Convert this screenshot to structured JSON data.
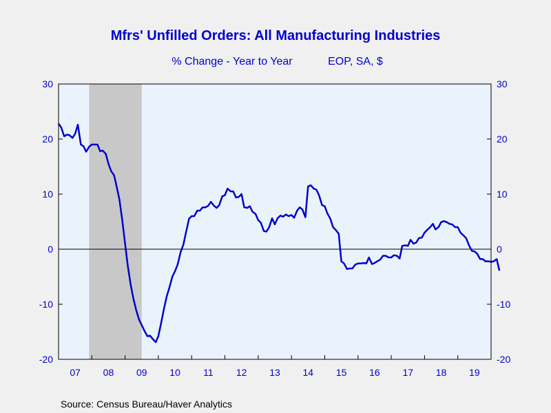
{
  "colors": {
    "background": "#f0f0f0",
    "plot_background": "#eaf2fb",
    "title": "#0000cc",
    "axis_text": "#0000cc",
    "series": "#0000cc",
    "recession": "#c8c8c8",
    "source_text": "#000000"
  },
  "chart_data": {
    "type": "line",
    "title": "Mfrs' Unfilled Orders: All Manufacturing Industries",
    "subtitle": "% Change - Year to Year",
    "subtitle_note": "EOP, SA, $",
    "source": "Source:  Census Bureau/Haver Analytics",
    "ylim": [
      -20,
      30
    ],
    "y_ticks_left": [
      "30",
      "20",
      "10",
      "0",
      "-10",
      "-20"
    ],
    "y_ticks_right": [
      "30",
      "20",
      "10",
      "0",
      "-10",
      "-20"
    ],
    "y_tick_values": [
      30,
      20,
      10,
      0,
      -10,
      -20
    ],
    "xlim": [
      2007.0,
      2020.0
    ],
    "x_ticks": [
      "07",
      "08",
      "09",
      "10",
      "11",
      "12",
      "13",
      "14",
      "15",
      "16",
      "17",
      "18",
      "19"
    ],
    "zero_line": true,
    "recession_shading": {
      "start": 2007.92,
      "end": 2009.5
    },
    "series": [
      {
        "values": [
          [
            2007.0,
            22.8
          ],
          [
            2007.08,
            22.1
          ],
          [
            2007.17,
            20.5
          ],
          [
            2007.25,
            20.8
          ],
          [
            2007.33,
            20.7
          ],
          [
            2007.42,
            20.2
          ],
          [
            2007.5,
            21.0
          ],
          [
            2007.58,
            22.6
          ],
          [
            2007.67,
            19.0
          ],
          [
            2007.75,
            18.7
          ],
          [
            2007.83,
            17.7
          ],
          [
            2007.92,
            18.6
          ],
          [
            2008.0,
            19.0
          ],
          [
            2008.08,
            19.0
          ],
          [
            2008.17,
            19.0
          ],
          [
            2008.25,
            17.8
          ],
          [
            2008.33,
            17.9
          ],
          [
            2008.42,
            17.3
          ],
          [
            2008.5,
            15.5
          ],
          [
            2008.58,
            14.2
          ],
          [
            2008.67,
            13.4
          ],
          [
            2008.75,
            11.3
          ],
          [
            2008.83,
            9.0
          ],
          [
            2008.92,
            5.0
          ],
          [
            2009.0,
            1.0
          ],
          [
            2009.08,
            -3.0
          ],
          [
            2009.17,
            -6.5
          ],
          [
            2009.25,
            -9.0
          ],
          [
            2009.33,
            -11.0
          ],
          [
            2009.42,
            -12.8
          ],
          [
            2009.5,
            -13.8
          ],
          [
            2009.58,
            -14.8
          ],
          [
            2009.67,
            -15.8
          ],
          [
            2009.75,
            -15.7
          ],
          [
            2009.83,
            -16.3
          ],
          [
            2009.92,
            -16.9
          ],
          [
            2010.0,
            -15.8
          ],
          [
            2010.08,
            -13.5
          ],
          [
            2010.17,
            -10.8
          ],
          [
            2010.25,
            -8.6
          ],
          [
            2010.33,
            -7.0
          ],
          [
            2010.42,
            -5.0
          ],
          [
            2010.5,
            -4.0
          ],
          [
            2010.58,
            -2.8
          ],
          [
            2010.67,
            -0.5
          ],
          [
            2010.75,
            0.8
          ],
          [
            2010.83,
            3.0
          ],
          [
            2010.92,
            5.5
          ],
          [
            2011.0,
            6.0
          ],
          [
            2011.08,
            6.0
          ],
          [
            2011.17,
            7.0
          ],
          [
            2011.25,
            7.0
          ],
          [
            2011.33,
            7.6
          ],
          [
            2011.42,
            7.6
          ],
          [
            2011.5,
            7.9
          ],
          [
            2011.58,
            8.6
          ],
          [
            2011.67,
            7.9
          ],
          [
            2011.75,
            7.5
          ],
          [
            2011.83,
            8.0
          ],
          [
            2011.92,
            9.6
          ],
          [
            2012.0,
            9.8
          ],
          [
            2012.08,
            11.0
          ],
          [
            2012.17,
            10.5
          ],
          [
            2012.25,
            10.5
          ],
          [
            2012.33,
            9.4
          ],
          [
            2012.42,
            9.5
          ],
          [
            2012.5,
            10.0
          ],
          [
            2012.58,
            7.6
          ],
          [
            2012.67,
            7.5
          ],
          [
            2012.75,
            7.8
          ],
          [
            2012.83,
            6.8
          ],
          [
            2012.92,
            6.4
          ],
          [
            2013.0,
            5.3
          ],
          [
            2013.08,
            4.8
          ],
          [
            2013.17,
            3.3
          ],
          [
            2013.25,
            3.2
          ],
          [
            2013.33,
            4.0
          ],
          [
            2013.42,
            5.6
          ],
          [
            2013.5,
            4.5
          ],
          [
            2013.58,
            5.6
          ],
          [
            2013.67,
            6.1
          ],
          [
            2013.75,
            5.9
          ],
          [
            2013.83,
            6.3
          ],
          [
            2013.92,
            6.0
          ],
          [
            2014.0,
            6.2
          ],
          [
            2014.08,
            5.7
          ],
          [
            2014.17,
            7.0
          ],
          [
            2014.25,
            7.6
          ],
          [
            2014.33,
            7.2
          ],
          [
            2014.42,
            5.8
          ],
          [
            2014.5,
            11.4
          ],
          [
            2014.58,
            11.6
          ],
          [
            2014.67,
            11.0
          ],
          [
            2014.75,
            10.8
          ],
          [
            2014.83,
            9.8
          ],
          [
            2014.92,
            8.0
          ],
          [
            2015.0,
            7.8
          ],
          [
            2015.08,
            6.5
          ],
          [
            2015.17,
            5.5
          ],
          [
            2015.25,
            4.0
          ],
          [
            2015.33,
            3.5
          ],
          [
            2015.42,
            2.8
          ],
          [
            2015.5,
            -2.2
          ],
          [
            2015.58,
            -2.6
          ],
          [
            2015.67,
            -3.6
          ],
          [
            2015.75,
            -3.5
          ],
          [
            2015.83,
            -3.5
          ],
          [
            2015.92,
            -2.8
          ],
          [
            2016.0,
            -2.6
          ],
          [
            2016.08,
            -2.6
          ],
          [
            2016.17,
            -2.5
          ],
          [
            2016.25,
            -2.6
          ],
          [
            2016.33,
            -1.5
          ],
          [
            2016.42,
            -2.7
          ],
          [
            2016.5,
            -2.5
          ],
          [
            2016.58,
            -2.2
          ],
          [
            2016.67,
            -1.9
          ],
          [
            2016.75,
            -1.2
          ],
          [
            2016.83,
            -1.2
          ],
          [
            2016.92,
            -1.5
          ],
          [
            2017.0,
            -1.5
          ],
          [
            2017.08,
            -1.1
          ],
          [
            2017.17,
            -1.2
          ],
          [
            2017.25,
            -1.7
          ],
          [
            2017.33,
            0.6
          ],
          [
            2017.42,
            0.7
          ],
          [
            2017.5,
            0.6
          ],
          [
            2017.58,
            1.7
          ],
          [
            2017.67,
            1.0
          ],
          [
            2017.75,
            1.2
          ],
          [
            2017.83,
            2.0
          ],
          [
            2017.92,
            2.1
          ],
          [
            2018.0,
            3.0
          ],
          [
            2018.08,
            3.5
          ],
          [
            2018.17,
            4.0
          ],
          [
            2018.25,
            4.6
          ],
          [
            2018.33,
            3.6
          ],
          [
            2018.42,
            4.0
          ],
          [
            2018.5,
            4.9
          ],
          [
            2018.58,
            5.1
          ],
          [
            2018.67,
            4.9
          ],
          [
            2018.75,
            4.6
          ],
          [
            2018.83,
            4.5
          ],
          [
            2018.92,
            4.0
          ],
          [
            2019.0,
            4.0
          ],
          [
            2019.08,
            3.0
          ],
          [
            2019.17,
            2.5
          ],
          [
            2019.25,
            2.0
          ],
          [
            2019.33,
            0.8
          ],
          [
            2019.42,
            -0.3
          ],
          [
            2019.5,
            -0.4
          ],
          [
            2019.58,
            -0.8
          ],
          [
            2019.67,
            -1.8
          ],
          [
            2019.75,
            -1.8
          ],
          [
            2019.83,
            -2.2
          ],
          [
            2019.92,
            -2.2
          ],
          [
            2020.0,
            -2.3
          ],
          [
            2020.08,
            -2.2
          ],
          [
            2020.17,
            -1.8
          ],
          [
            2020.25,
            -3.9
          ]
        ]
      }
    ]
  }
}
